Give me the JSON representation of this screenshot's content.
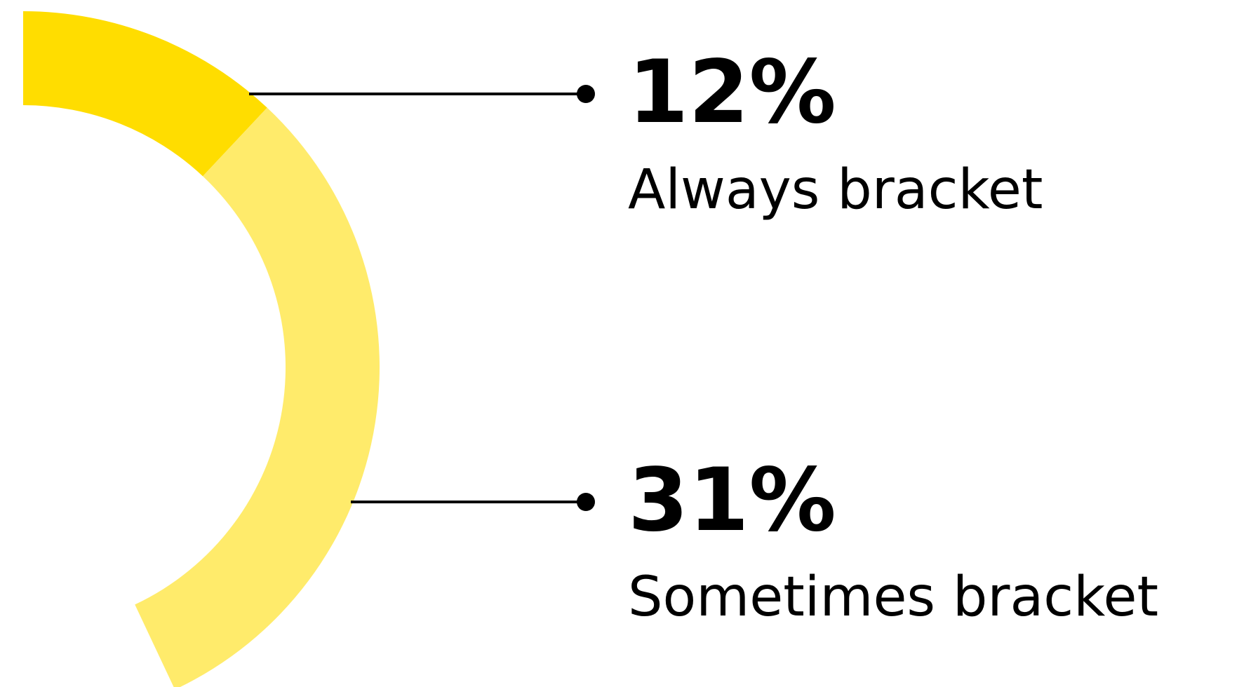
{
  "chart_data": {
    "type": "pie",
    "title": "",
    "categories": [
      "Always bracket",
      "Sometimes bracket"
    ],
    "values": [
      12,
      31
    ],
    "value_labels": [
      "12%",
      "31%"
    ],
    "unit": "%",
    "legend": "none",
    "colors": [
      "#FFDD00",
      "#FFEB6B"
    ],
    "label_color": "#000000"
  }
}
